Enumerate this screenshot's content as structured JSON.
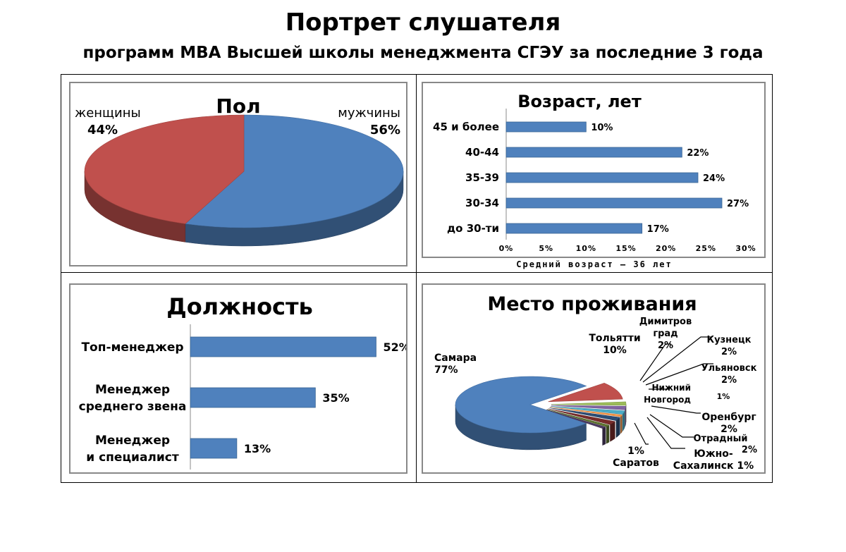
{
  "header": {
    "title": "Портрет слушателя",
    "subtitle": "программ МВА Высшей школы менеджмента СГЭУ за последние 3 года"
  },
  "colors": {
    "blue": "#4f81bd",
    "red": "#c0504d"
  },
  "chart_data": [
    {
      "type": "pie",
      "title": "Пол",
      "categories": [
        "мужчины",
        "женщины"
      ],
      "values": [
        56,
        44
      ],
      "labels": [
        "56%",
        "44%"
      ],
      "colors": [
        "#4f81bd",
        "#c0504d"
      ]
    },
    {
      "type": "bar",
      "title": "Возраст, лет",
      "categories": [
        "до 30-ти",
        "30-34",
        "35-39",
        "40-44",
        "45 и более"
      ],
      "values": [
        17,
        27,
        24,
        22,
        10
      ],
      "labels": [
        "17%",
        "27%",
        "24%",
        "22%",
        "10%"
      ],
      "xlim": [
        0,
        30
      ],
      "ticks": [
        "0%",
        "5%",
        "10%",
        "15%",
        "20%",
        "25%",
        "30%"
      ],
      "note": "Средний возраст – 36 лет"
    },
    {
      "type": "bar",
      "title": "Должность",
      "categories": [
        "Топ-менеджер",
        "Менеджер среднего звена",
        "Менеджер и специалист"
      ],
      "category_lines": [
        [
          "Топ-менеджер"
        ],
        [
          "Менеджер",
          "среднего звена"
        ],
        [
          "Менеджер",
          "и специалист"
        ]
      ],
      "values": [
        52,
        35,
        13
      ],
      "labels": [
        "52%",
        "35%",
        "13%"
      ],
      "xlim": [
        0,
        60
      ]
    },
    {
      "type": "pie",
      "title": "Место проживания",
      "categories": [
        "Самара",
        "Тольятти",
        "Димитровград",
        "Кузнецк",
        "Ульяновск",
        "Нижний Новгород",
        "Оренбург",
        "Отрадный",
        "Южно-Сахалинск",
        "Саратов"
      ],
      "values": [
        77,
        10,
        2,
        2,
        2,
        1,
        2,
        2,
        1,
        1
      ],
      "labels": [
        "77%",
        "10%",
        "2%",
        "2%",
        "2%",
        "1%",
        "2%",
        "2%",
        "1%",
        "1%"
      ],
      "colors": [
        "#4f81bd",
        "#c0504d",
        "#9bbb59",
        "#8064a2",
        "#4bacc6",
        "#f79646",
        "#2c4d75",
        "#772c2a",
        "#5f7530",
        "#4d3b62"
      ]
    }
  ]
}
